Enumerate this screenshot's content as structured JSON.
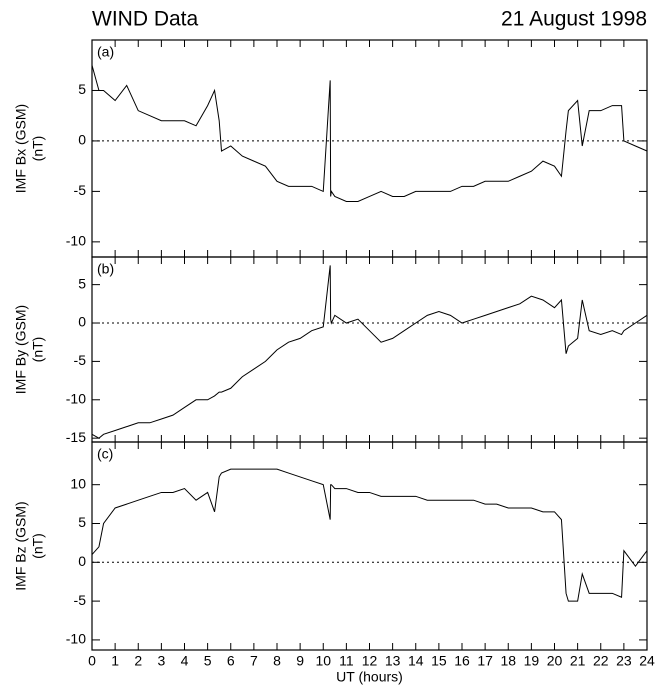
{
  "title": "WIND Data",
  "date": "21 August 1998",
  "chart_data": [
    {
      "type": "line",
      "panel_label": "(a)",
      "ylabel": [
        "IMF Bx (GSM)",
        "(nT)"
      ],
      "x": [
        0,
        0.3,
        0.5,
        1,
        1.5,
        2,
        2.5,
        3,
        3.5,
        4,
        4.5,
        5,
        5.3,
        5.5,
        5.6,
        6,
        6.5,
        7,
        7.5,
        8,
        8.5,
        9,
        9.5,
        10,
        10.3,
        10.32,
        10.35,
        10.5,
        11,
        11.5,
        12,
        12.5,
        13,
        13.5,
        14,
        14.5,
        15,
        15.5,
        16,
        16.5,
        17,
        17.5,
        18,
        18.5,
        19,
        19.5,
        20,
        20.3,
        20.5,
        20.6,
        21,
        21.2,
        21.5,
        22,
        22.5,
        22.9,
        23,
        23.5,
        24
      ],
      "series": [
        {
          "color": "#000000",
          "values": [
            7.5,
            5,
            5,
            4,
            5.5,
            3,
            2.5,
            2,
            2,
            2,
            1.5,
            3.5,
            5,
            2,
            -1,
            -0.5,
            -1.5,
            -2,
            -2.5,
            -4,
            -4.5,
            -4.5,
            -4.5,
            -5,
            6,
            -5.5,
            -5,
            -5.5,
            -6,
            -6,
            -5.5,
            -5,
            -5.5,
            -5.5,
            -5,
            -5,
            -5,
            -5,
            -4.5,
            -4.5,
            -4,
            -4,
            -4,
            -3.5,
            -3,
            -2,
            -2.5,
            -3.5,
            1,
            3,
            4,
            -0.5,
            3,
            3,
            3.5,
            3.5,
            0,
            -0.5,
            -1
          ]
        }
      ],
      "xlim": [
        0,
        24
      ],
      "xticks": [
        0,
        1,
        2,
        3,
        4,
        5,
        6,
        7,
        8,
        9,
        10,
        11,
        12,
        13,
        14,
        15,
        16,
        17,
        18,
        19,
        20,
        21,
        22,
        23,
        24
      ],
      "ylim": [
        -11.5,
        10
      ],
      "yticks": [
        -10,
        -5,
        0,
        5
      ],
      "hline": 0
    },
    {
      "type": "line",
      "panel_label": "(b)",
      "ylabel": [
        "IMF By (GSM)",
        "(nT)"
      ],
      "x": [
        0,
        0.3,
        0.5,
        1,
        1.5,
        2,
        2.5,
        3,
        3.5,
        4,
        4.5,
        5,
        5.3,
        5.5,
        5.6,
        6,
        6.5,
        7,
        7.5,
        8,
        8.5,
        9,
        9.5,
        10,
        10.3,
        10.32,
        10.35,
        10.5,
        11,
        11.5,
        12,
        12.5,
        13,
        13.5,
        14,
        14.5,
        15,
        15.5,
        16,
        16.5,
        17,
        17.5,
        18,
        18.5,
        19,
        19.5,
        20,
        20.3,
        20.5,
        20.6,
        21,
        21.2,
        21.5,
        22,
        22.5,
        22.9,
        23,
        23.5,
        24
      ],
      "series": [
        {
          "color": "#000000",
          "values": [
            -14.5,
            -15,
            -14.5,
            -14,
            -13.5,
            -13,
            -13,
            -12.5,
            -12,
            -11,
            -10,
            -10,
            -9.5,
            -9,
            -9,
            -8.5,
            -7,
            -6,
            -5,
            -3.5,
            -2.5,
            -2,
            -1,
            -0.5,
            7.5,
            0.5,
            0,
            1,
            0,
            0.5,
            -1,
            -2.5,
            -2,
            -1,
            0,
            1,
            1.5,
            1,
            0,
            0.5,
            1,
            1.5,
            2,
            2.5,
            3.5,
            3,
            2,
            3,
            -4,
            -3,
            -2,
            3,
            -1,
            -1.5,
            -1,
            -1.5,
            -1,
            0,
            1
          ]
        }
      ],
      "xlim": [
        0,
        24
      ],
      "xticks": [
        0,
        1,
        2,
        3,
        4,
        5,
        6,
        7,
        8,
        9,
        10,
        11,
        12,
        13,
        14,
        15,
        16,
        17,
        18,
        19,
        20,
        21,
        22,
        23,
        24
      ],
      "ylim": [
        -15.5,
        8.6
      ],
      "yticks": [
        -15,
        -10,
        -5,
        0,
        5
      ],
      "hline": 0
    },
    {
      "type": "line",
      "panel_label": "(c)",
      "ylabel": [
        "IMF Bz (GSM)",
        "(nT)"
      ],
      "xlabel": "UT (hours)",
      "x": [
        0,
        0.3,
        0.5,
        1,
        1.5,
        2,
        2.5,
        3,
        3.5,
        4,
        4.5,
        5,
        5.3,
        5.5,
        5.6,
        6,
        6.5,
        7,
        7.5,
        8,
        8.5,
        9,
        9.5,
        10,
        10.3,
        10.32,
        10.35,
        10.5,
        11,
        11.5,
        12,
        12.5,
        13,
        13.5,
        14,
        14.5,
        15,
        15.5,
        16,
        16.5,
        17,
        17.5,
        18,
        18.5,
        19,
        19.5,
        20,
        20.3,
        20.5,
        20.6,
        21,
        21.2,
        21.5,
        22,
        22.5,
        22.9,
        23,
        23.5,
        24
      ],
      "series": [
        {
          "color": "#000000",
          "values": [
            1,
            2,
            5,
            7,
            7.5,
            8,
            8.5,
            9,
            9,
            9.5,
            8,
            9,
            6.5,
            11,
            11.5,
            12,
            12,
            12,
            12,
            12,
            11.5,
            11,
            10.5,
            10,
            5.5,
            10,
            10,
            9.5,
            9.5,
            9,
            9,
            8.5,
            8.5,
            8.5,
            8.5,
            8,
            8,
            8,
            8,
            8,
            7.5,
            7.5,
            7,
            7,
            7,
            6.5,
            6.5,
            5.5,
            -4,
            -5,
            -5,
            -1.5,
            -4,
            -4,
            -4,
            -4.5,
            1.5,
            -0.5,
            1.5
          ]
        }
      ],
      "xlim": [
        0,
        24
      ],
      "xticks": [
        0,
        1,
        2,
        3,
        4,
        5,
        6,
        7,
        8,
        9,
        10,
        11,
        12,
        13,
        14,
        15,
        16,
        17,
        18,
        19,
        20,
        21,
        22,
        23,
        24
      ],
      "ylim": [
        -11.3,
        15.5
      ],
      "yticks": [
        -10,
        -5,
        0,
        5,
        10
      ],
      "hline": 0
    }
  ]
}
